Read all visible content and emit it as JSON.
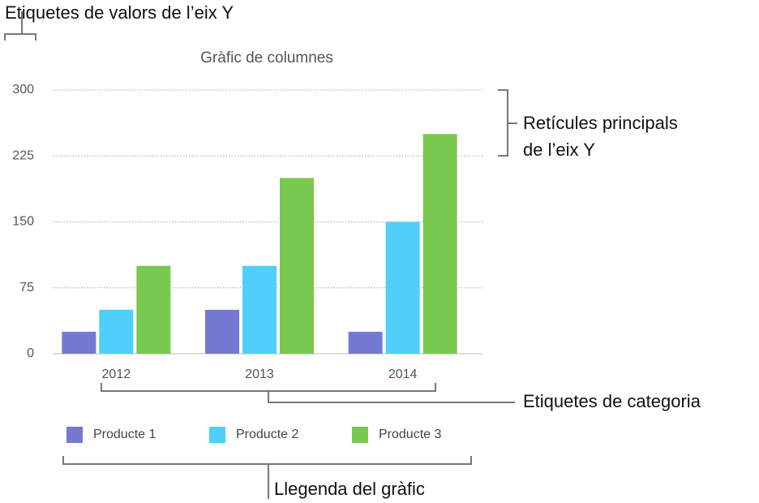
{
  "chart_data": {
    "type": "bar",
    "title": "Gràfic de columnes",
    "categories": [
      "2012",
      "2013",
      "2014"
    ],
    "series": [
      {
        "name": "Producte 1",
        "color": "#7479d1",
        "values": [
          25,
          50,
          25
        ]
      },
      {
        "name": "Producte 2",
        "color": "#4fcffb",
        "values": [
          50,
          100,
          150
        ]
      },
      {
        "name": "Producte 3",
        "color": "#79c950",
        "values": [
          100,
          200,
          250
        ]
      }
    ],
    "ylim": [
      0,
      300
    ],
    "yticks": [
      0,
      75,
      150,
      225,
      300
    ],
    "grid": true,
    "legend": "bottom",
    "annotations": [
      {
        "lines": [
          "Etiquetes de valors de l’eix Y"
        ]
      },
      {
        "lines": [
          "Retícules principals",
          "de l’eix Y"
        ]
      },
      {
        "lines": [
          "Etiquetes de categoria"
        ]
      },
      {
        "lines": [
          "Llegenda del gràfic"
        ]
      }
    ]
  }
}
